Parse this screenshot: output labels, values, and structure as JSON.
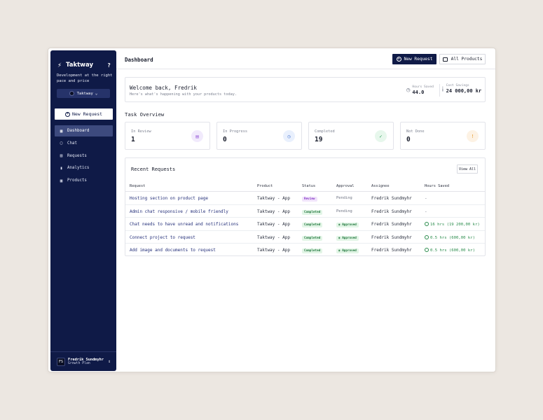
{
  "sidebar": {
    "brand": "Taktway",
    "help": "?",
    "tagline": "Development at the right pace and price",
    "workspace": "Taktway",
    "new_request": "New Request",
    "nav": [
      {
        "label": "Dashboard",
        "icon": "grid-icon"
      },
      {
        "label": "Chat",
        "icon": "chat-icon"
      },
      {
        "label": "Requests",
        "icon": "document-icon"
      },
      {
        "label": "Analytics",
        "icon": "bar-chart-icon"
      },
      {
        "label": "Products",
        "icon": "box-icon"
      }
    ],
    "user": {
      "initials": "FS",
      "name": "Fredrik Sundmyhr",
      "plan": "Growth Plan"
    }
  },
  "header": {
    "title": "Dashboard",
    "new_request": "New Request",
    "all_products": "All Products"
  },
  "welcome": {
    "title": "Welcome back, Fredrik",
    "subtitle": "Here's what's happening with your products today.",
    "hours_saved_label": "Hours Saved",
    "hours_saved_value": "44.0",
    "cost_savings_label": "Cost Savings",
    "cost_savings_value": "24 000,00 kr"
  },
  "task_overview": {
    "title": "Task Overview",
    "cards": [
      {
        "label": "In Review",
        "value": "1"
      },
      {
        "label": "In Progress",
        "value": "0"
      },
      {
        "label": "Completed",
        "value": "19"
      },
      {
        "label": "Not Done",
        "value": "0"
      }
    ]
  },
  "recent": {
    "title": "Recent Requests",
    "view_all": "View All",
    "columns": [
      "Request",
      "Product",
      "Status",
      "Approval",
      "Assignee",
      "Hours Saved"
    ],
    "rows": [
      {
        "request": "Hosting section on product page",
        "product": "Taktway - App",
        "status": "Review",
        "approval": "Pending",
        "assignee": "Fredrik Sundmyhr",
        "hours": "-"
      },
      {
        "request": "Admin chat responsive / mobile friendly",
        "product": "Taktway - App",
        "status": "Completed",
        "approval": "Pending",
        "assignee": "Fredrik Sundmyhr",
        "hours": "-"
      },
      {
        "request": "Chat needs to have unread and notifications",
        "product": "Taktway - App",
        "status": "Completed",
        "approval": "Approved",
        "assignee": "Fredrik Sundmyhr",
        "hours": "16 hrs (19 200,00 kr)"
      },
      {
        "request": "Connect project to request",
        "product": "Taktway - App",
        "status": "Completed",
        "approval": "Approved",
        "assignee": "Fredrik Sundmyhr",
        "hours": "0.5 hrs (600,00 kr)"
      },
      {
        "request": "Add image and documents to request",
        "product": "Taktway - App",
        "status": "Completed",
        "approval": "Approved",
        "assignee": "Fredrik Sundmyhr",
        "hours": "0.5 hrs (600,00 kr)"
      }
    ]
  },
  "colors": {
    "navy": "#0f1a47",
    "accent_green": "#2a8c4c",
    "review_purple": "#8a3ec8"
  }
}
